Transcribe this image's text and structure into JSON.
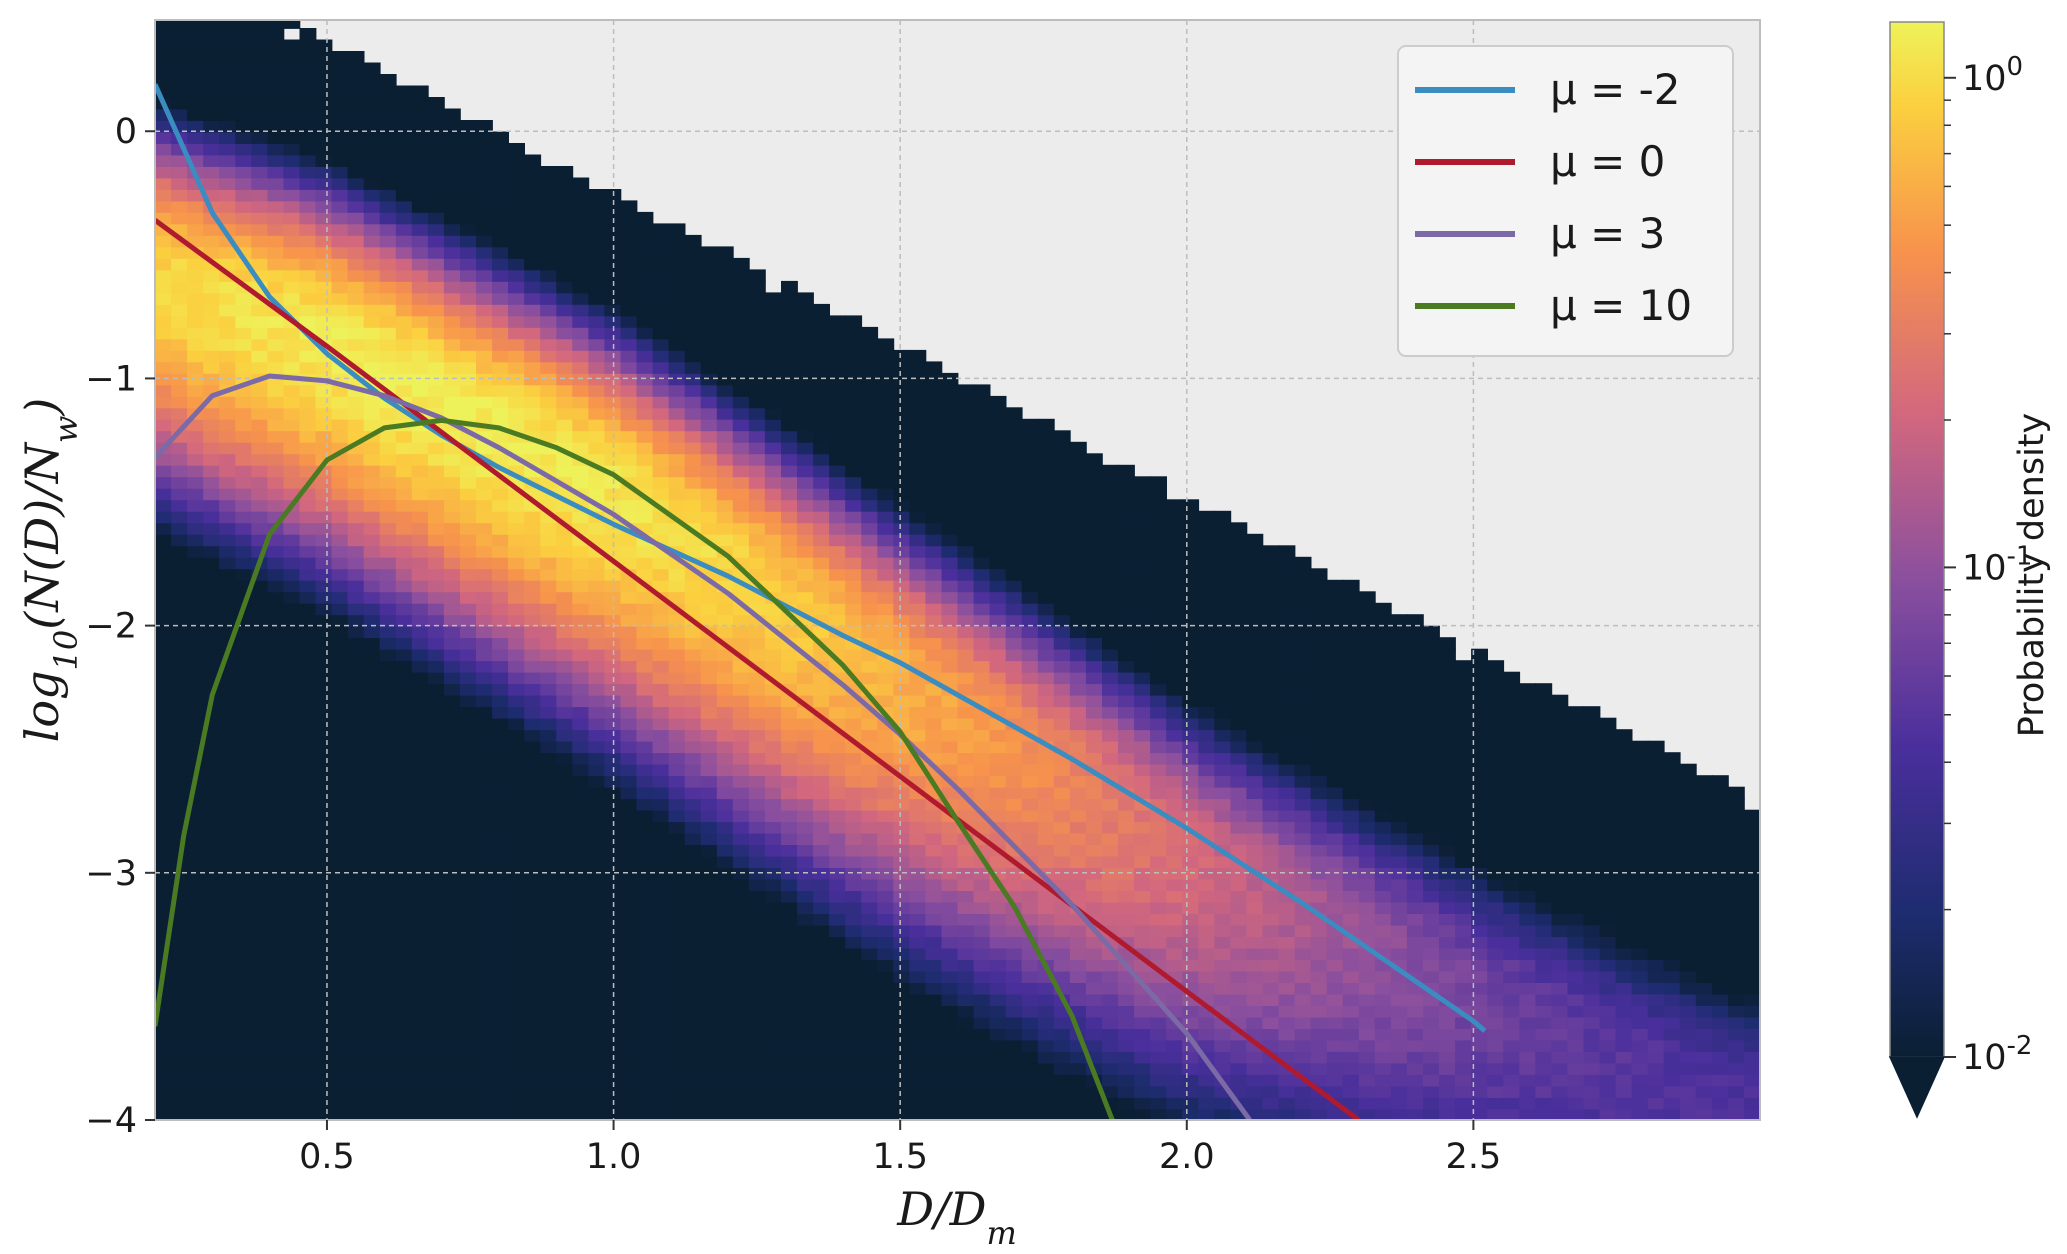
{
  "chart_data": {
    "type": "heatmap",
    "xlabel": "D/D_m",
    "ylabel": "log10(N(D)/N_w)",
    "xlim": [
      0.2,
      3.0
    ],
    "ylim": [
      -4.0,
      0.45
    ],
    "x_ticks": [
      0.5,
      1.0,
      1.5,
      2.0,
      2.5
    ],
    "x_tick_labels": [
      "0.5",
      "1.0",
      "1.5",
      "2.0",
      "2.5"
    ],
    "y_ticks": [
      0,
      -1,
      -2,
      -3,
      -4
    ],
    "y_tick_labels": [
      "0",
      "−1",
      "−2",
      "−3",
      "−4"
    ],
    "grid": true,
    "background": "#ececec",
    "colormap": "plasma-like",
    "colorbar": {
      "label": "Probability density",
      "scale": "log",
      "range": [
        0.01,
        1.3
      ],
      "tick_values": [
        1,
        0.1,
        0.01
      ],
      "tick_base": [
        "10",
        "10",
        "10"
      ],
      "tick_exp": [
        "0",
        "-1",
        "-2"
      ],
      "extend": "min"
    },
    "density_ridge": {
      "description_points_x": [
        0.2,
        0.5,
        1.0,
        1.5,
        2.0,
        2.5,
        2.95
      ],
      "ridge_y": [
        -0.6,
        -0.85,
        -1.45,
        -2.2,
        -2.9,
        -3.45,
        -3.9
      ]
    },
    "legend_position": "top-right",
    "series": [
      {
        "name": "μ = -2",
        "mu": -2,
        "color": "#3a8cc1",
        "x": [
          0.2,
          0.3,
          0.4,
          0.5,
          0.6,
          0.7,
          0.8,
          1.0,
          1.2,
          1.4,
          1.5,
          1.6,
          1.8,
          2.0,
          2.2,
          2.5,
          2.52
        ],
        "y": [
          0.19,
          -0.33,
          -0.67,
          -0.9,
          -1.08,
          -1.23,
          -1.36,
          -1.59,
          -1.8,
          -2.04,
          -2.15,
          -2.28,
          -2.54,
          -2.82,
          -3.12,
          -3.6,
          -3.64
        ]
      },
      {
        "name": "μ = 0",
        "mu": 0,
        "color": "#b01a2e",
        "x": [
          0.2,
          0.5,
          1.0,
          1.5,
          2.0,
          2.3
        ],
        "y": [
          -0.36,
          -0.87,
          -1.74,
          -2.61,
          -3.48,
          -4.0
        ]
      },
      {
        "name": "μ = 3",
        "mu": 3,
        "color": "#7b6aa6",
        "x": [
          0.2,
          0.3,
          0.4,
          0.5,
          0.6,
          0.7,
          0.8,
          1.0,
          1.2,
          1.4,
          1.5,
          1.6,
          1.8,
          2.0,
          2.11
        ],
        "y": [
          -1.32,
          -1.07,
          -0.99,
          -1.01,
          -1.07,
          -1.16,
          -1.28,
          -1.55,
          -1.87,
          -2.24,
          -2.44,
          -2.66,
          -3.13,
          -3.65,
          -4.0
        ]
      },
      {
        "name": "μ = 10",
        "mu": 10,
        "color": "#4a7a22",
        "x": [
          0.2,
          0.25,
          0.3,
          0.4,
          0.5,
          0.6,
          0.7,
          0.8,
          0.9,
          1.0,
          1.2,
          1.4,
          1.5,
          1.6,
          1.7,
          1.8,
          1.87
        ],
        "y": [
          -3.62,
          -2.85,
          -2.28,
          -1.63,
          -1.33,
          -1.2,
          -1.17,
          -1.2,
          -1.28,
          -1.39,
          -1.72,
          -2.16,
          -2.43,
          -2.79,
          -3.14,
          -3.58,
          -4.0
        ]
      }
    ]
  }
}
